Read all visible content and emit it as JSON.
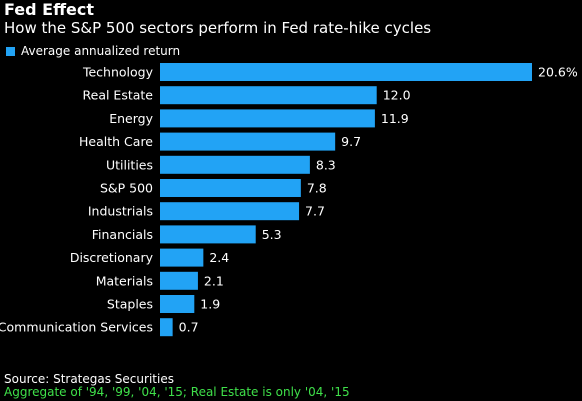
{
  "colors": {
    "background": "#000000",
    "bar": "#22a3f5",
    "text": "#ffffff",
    "note": "#3fe04a"
  },
  "chart_data": {
    "type": "bar",
    "orientation": "horizontal",
    "title": "Fed Effect",
    "subtitle": "How the S&P 500 sectors perform in Fed rate-hike cycles",
    "legend": {
      "entries": [
        "Average annualized return"
      ],
      "placement": "top-left"
    },
    "categories": [
      "Technology",
      "Real Estate",
      "Energy",
      "Health Care",
      "Utilities",
      "S&P 500",
      "Industrials",
      "Financials",
      "Discretionary",
      "Materials",
      "Staples",
      "Communication Services"
    ],
    "series": [
      {
        "name": "Average annualized return",
        "values": [
          20.6,
          12.0,
          11.9,
          9.7,
          8.3,
          7.8,
          7.7,
          5.3,
          2.4,
          2.1,
          1.9,
          0.7
        ]
      }
    ],
    "value_labels": [
      "20.6%",
      "12.0",
      "11.9",
      "9.7",
      "8.3",
      "7.8",
      "7.7",
      "5.3",
      "2.4",
      "2.1",
      "1.9",
      "0.7"
    ],
    "xlim": [
      0,
      20.6
    ],
    "grid": false
  },
  "footer": {
    "source": "Source: Strategas Securities",
    "note": "Aggregate of '94, '99, '04, '15; Real Estate is only '04, '15"
  }
}
